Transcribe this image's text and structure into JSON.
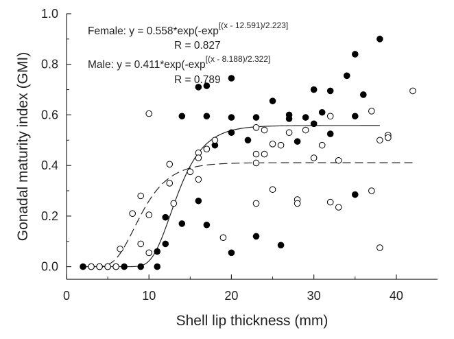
{
  "chart_data": {
    "type": "scatter",
    "title": "",
    "xlabel": "Shell lip thickness (mm)",
    "ylabel": "Gonadal maturity index (GMI)",
    "xlim": [
      0,
      45
    ],
    "ylim": [
      -0.05,
      1.0
    ],
    "x_ticks": [
      "0",
      "10",
      "20",
      "30",
      "40"
    ],
    "y_ticks": [
      "0.0",
      "0.2",
      "0.4",
      "0.6",
      "0.8",
      "1.0"
    ],
    "grid": false,
    "legend": "none",
    "annotations": {
      "female_eq_main": "Female:  y = 0.558*exp(-exp",
      "female_eq_sup": "[(x - 12.591)/2.223]",
      "female_r": "R = 0.827",
      "male_eq_main": "Male:  y = 0.411*exp(-exp",
      "male_eq_sup": "[(x - 8.188)/2.322]",
      "male_r": "R = 0.789"
    },
    "fits": [
      {
        "a": 0.558,
        "x0": 12.591,
        "b": 2.223,
        "style": "solid",
        "x_range": [
          2,
          38
        ]
      },
      {
        "a": 0.411,
        "x0": 8.188,
        "b": 2.322,
        "style": "dashed",
        "x_range": [
          2,
          42
        ]
      }
    ],
    "series": [
      {
        "marker": "filled-circle",
        "color": "#000000",
        "points": [
          [
            2,
            0.0
          ],
          [
            3,
            0.0
          ],
          [
            4,
            0.0
          ],
          [
            5,
            0.0
          ],
          [
            6,
            0.0
          ],
          [
            7,
            0.0
          ],
          [
            9,
            0.0
          ],
          [
            11,
            0.0
          ],
          [
            11,
            0.06
          ],
          [
            12,
            0.09
          ],
          [
            12,
            0.195
          ],
          [
            14,
            0.17
          ],
          [
            14,
            0.595
          ],
          [
            16,
            0.26
          ],
          [
            16,
            0.71
          ],
          [
            17,
            0.715
          ],
          [
            17,
            0.165
          ],
          [
            17,
            0.595
          ],
          [
            18,
            0.48
          ],
          [
            20,
            0.745
          ],
          [
            20,
            0.59
          ],
          [
            20,
            0.53
          ],
          [
            20,
            0.055
          ],
          [
            22,
            0.5
          ],
          [
            23,
            0.12
          ],
          [
            23,
            0.59
          ],
          [
            25,
            0.655
          ],
          [
            26,
            0.085
          ],
          [
            27,
            0.6
          ],
          [
            27,
            0.585
          ],
          [
            28,
            0.495
          ],
          [
            29,
            0.59
          ],
          [
            30,
            0.7
          ],
          [
            30,
            0.565
          ],
          [
            31,
            0.61
          ],
          [
            32,
            0.695
          ],
          [
            32,
            0.525
          ],
          [
            34,
            0.755
          ],
          [
            35,
            0.84
          ],
          [
            35,
            0.595
          ],
          [
            35,
            0.285
          ],
          [
            36,
            0.68
          ],
          [
            38,
            0.9
          ]
        ]
      },
      {
        "marker": "open-circle",
        "color": "#000000",
        "points": [
          [
            3,
            0.0
          ],
          [
            4,
            0.0
          ],
          [
            5,
            0.0
          ],
          [
            6,
            0.0
          ],
          [
            6.5,
            0.07
          ],
          [
            8,
            0.21
          ],
          [
            9,
            0.28
          ],
          [
            9,
            0.09
          ],
          [
            10,
            0.605
          ],
          [
            10,
            0.205
          ],
          [
            10,
            0.055
          ],
          [
            12.5,
            0.405
          ],
          [
            12.5,
            0.33
          ],
          [
            13,
            0.25
          ],
          [
            15,
            0.375
          ],
          [
            16,
            0.45
          ],
          [
            16,
            0.43
          ],
          [
            16,
            0.345
          ],
          [
            17,
            0.465
          ],
          [
            18,
            0.5
          ],
          [
            19,
            0.115
          ],
          [
            23,
            0.55
          ],
          [
            23,
            0.445
          ],
          [
            23,
            0.41
          ],
          [
            23,
            0.25
          ],
          [
            24,
            0.54
          ],
          [
            24,
            0.445
          ],
          [
            25,
            0.485
          ],
          [
            25,
            0.305
          ],
          [
            26,
            0.48
          ],
          [
            27,
            0.53
          ],
          [
            28,
            0.265
          ],
          [
            28,
            0.25
          ],
          [
            29,
            0.54
          ],
          [
            30,
            0.43
          ],
          [
            31,
            0.48
          ],
          [
            32,
            0.595
          ],
          [
            32,
            0.255
          ],
          [
            33,
            0.42
          ],
          [
            33,
            0.235
          ],
          [
            37,
            0.615
          ],
          [
            37,
            0.3
          ],
          [
            38,
            0.5
          ],
          [
            38,
            0.075
          ],
          [
            39,
            0.52
          ],
          [
            39,
            0.51
          ],
          [
            42,
            0.695
          ]
        ]
      }
    ]
  }
}
